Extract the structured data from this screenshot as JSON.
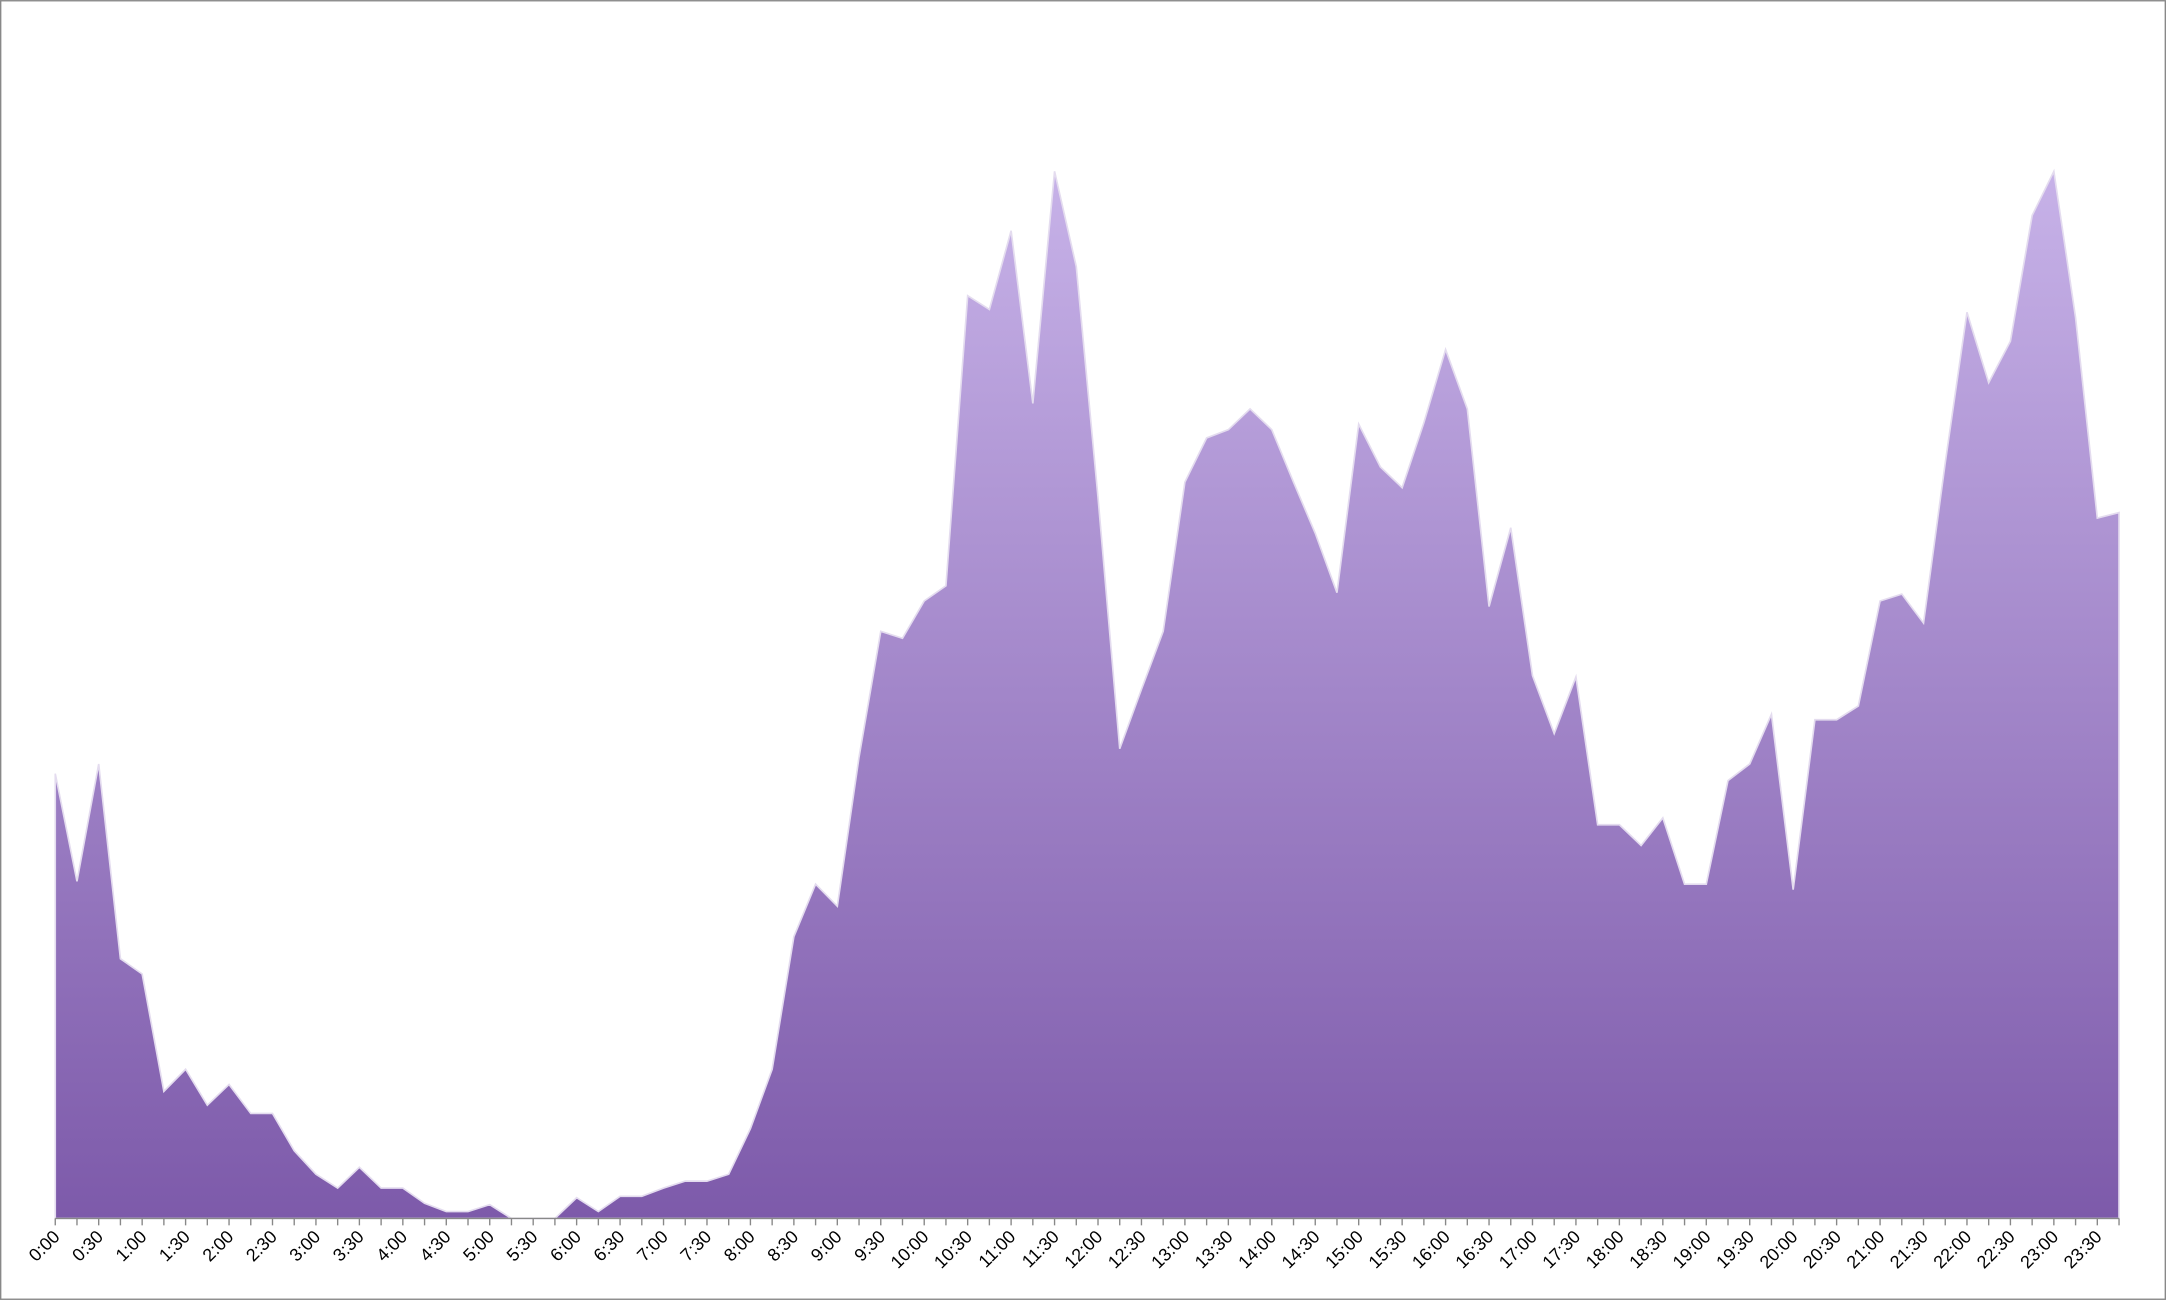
{
  "chart_data": {
    "type": "area",
    "categories": [
      "0:00",
      null,
      "0:30",
      null,
      "1:00",
      null,
      "1:30",
      null,
      "2:00",
      null,
      "2:30",
      null,
      "3:00",
      null,
      "3:30",
      null,
      "4:00",
      null,
      "4:30",
      null,
      "5:00",
      null,
      "5:30",
      null,
      "6:00",
      null,
      "6:30",
      null,
      "7:00",
      null,
      "7:30",
      null,
      "8:00",
      null,
      "8:30",
      null,
      "9:00",
      null,
      "9:30",
      null,
      "10:00",
      null,
      "10:30",
      null,
      "11:00",
      null,
      "11:30",
      null,
      "12:00",
      null,
      "12:30",
      null,
      "13:00",
      null,
      "13:30",
      null,
      "14:00",
      null,
      "14:30",
      null,
      "15:00",
      null,
      "15:30",
      null,
      "16:00",
      null,
      "16:30",
      null,
      "17:00",
      null,
      "17:30",
      null,
      "18:00",
      null,
      "18:30",
      null,
      "19:00",
      null,
      "19:30",
      null,
      "20:00",
      null,
      "20:30",
      null,
      "21:00",
      null,
      "21:30",
      null,
      "22:00",
      null,
      "22:30",
      null,
      "23:00",
      null,
      "23:30",
      null
    ],
    "values": [
      322,
      244,
      329,
      188,
      177,
      92,
      108,
      82,
      97,
      76,
      76,
      49,
      32,
      22,
      37,
      22,
      22,
      11,
      5,
      5,
      10,
      0,
      0,
      0,
      15,
      5,
      16,
      16,
      22,
      27,
      27,
      32,
      65,
      108,
      204,
      242,
      226,
      334,
      425,
      420,
      447,
      458,
      668,
      658,
      715,
      590,
      758,
      689,
      522,
      340,
      383,
      425,
      533,
      565,
      571,
      586,
      571,
      533,
      496,
      453,
      575,
      544,
      529,
      576,
      629,
      586,
      443,
      500,
      393,
      351,
      392,
      285,
      285,
      270,
      290,
      242,
      242,
      317,
      329,
      365,
      238,
      361,
      361,
      371,
      447,
      452,
      431,
      547,
      656,
      605,
      635,
      726,
      758,
      652,
      507,
      511
    ],
    "color": "#7d5aaa",
    "ylim": [
      0,
      880
    ]
  }
}
